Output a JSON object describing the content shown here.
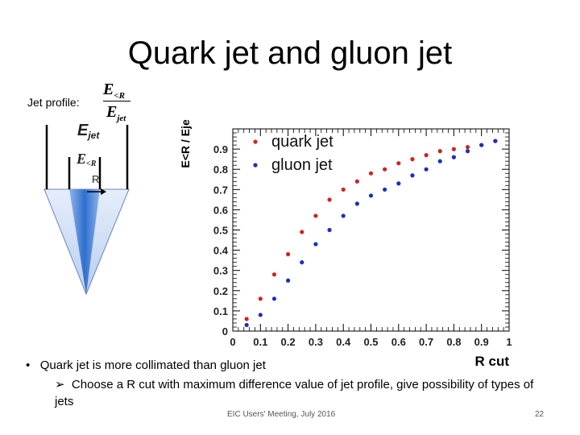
{
  "slide": {
    "title": "Quark jet and gluon jet",
    "profile_label": "Jet profile:",
    "fraction": {
      "numerator_base": "E",
      "numerator_sub": "<R",
      "denominator_base": "E",
      "denominator_sub": "jet"
    },
    "bullet": "Quark jet is more collimated than gluon jet",
    "subbullet": "Choose a R cut with maximum difference value of jet profile, give possibility of types of jets",
    "footer": "EIC Users' Meeting, July 2016",
    "page_number": "22"
  },
  "diagram": {
    "ejet_label": "E",
    "ejet_sub": "jet",
    "er_label": "E",
    "er_sub": "<R",
    "r_label": "R",
    "cone_color": "#3e7fd0"
  },
  "chart_data": {
    "type": "scatter",
    "title": "",
    "xlabel": "R cut",
    "ylabel": "E<R / Ejet",
    "xlim": [
      0,
      1
    ],
    "ylim": [
      0,
      1
    ],
    "x_ticks": [
      "0",
      "0.1",
      "0.2",
      "0.3",
      "0.4",
      "0.5",
      "0.6",
      "0.7",
      "0.8",
      "0.9",
      "1"
    ],
    "y_ticks": [
      "0",
      "0.1",
      "0.2",
      "0.3",
      "0.4",
      "0.5",
      "0.6",
      "0.7",
      "0.8",
      "0.9"
    ],
    "x_tick_values": [
      0,
      0.1,
      0.2,
      0.3,
      0.4,
      0.5,
      0.6,
      0.7,
      0.8,
      0.9,
      1.0
    ],
    "y_tick_values": [
      0,
      0.1,
      0.2,
      0.3,
      0.4,
      0.5,
      0.6,
      0.7,
      0.8,
      0.9
    ],
    "grid": false,
    "legend_position": "top-left",
    "series": [
      {
        "name": "quark jet",
        "color": "#d62020",
        "x": [
          0.05,
          0.1,
          0.15,
          0.2,
          0.25,
          0.3,
          0.35,
          0.4,
          0.45,
          0.5,
          0.55,
          0.6,
          0.65,
          0.7,
          0.75,
          0.8,
          0.85,
          0.9,
          0.95
        ],
        "y": [
          0.06,
          0.16,
          0.28,
          0.38,
          0.49,
          0.57,
          0.65,
          0.7,
          0.74,
          0.78,
          0.8,
          0.83,
          0.85,
          0.87,
          0.89,
          0.9,
          0.91,
          0.92,
          0.94
        ]
      },
      {
        "name": "gluon jet",
        "color": "#1a2fc2",
        "x": [
          0.05,
          0.1,
          0.15,
          0.2,
          0.25,
          0.3,
          0.35,
          0.4,
          0.45,
          0.5,
          0.55,
          0.6,
          0.65,
          0.7,
          0.75,
          0.8,
          0.85,
          0.9,
          0.95
        ],
        "y": [
          0.03,
          0.08,
          0.16,
          0.25,
          0.34,
          0.43,
          0.5,
          0.57,
          0.63,
          0.67,
          0.7,
          0.73,
          0.77,
          0.8,
          0.84,
          0.86,
          0.89,
          0.92,
          0.94
        ]
      }
    ]
  }
}
